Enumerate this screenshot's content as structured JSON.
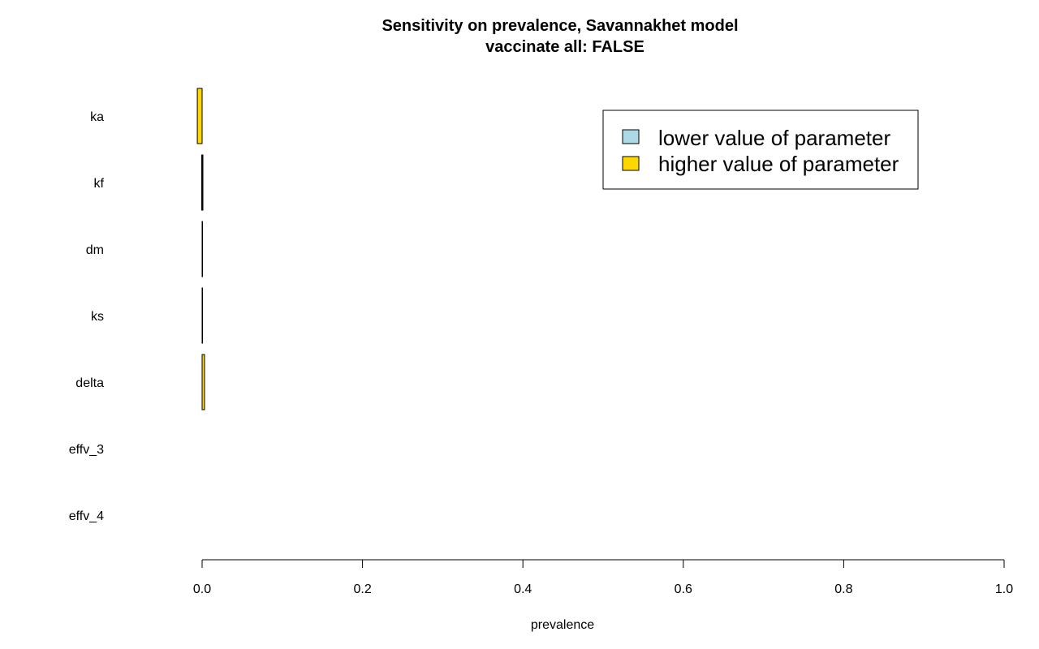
{
  "chart_data": {
    "type": "bar",
    "orientation": "horizontal",
    "title": "Sensitivity on prevalence, Savannakhet model",
    "subtitle": "vaccinate all: FALSE",
    "xlabel": "prevalence",
    "ylabel": "",
    "xlim": [
      0,
      1
    ],
    "x_ticks": [
      "0.0",
      "0.2",
      "0.4",
      "0.6",
      "0.8",
      "1.0"
    ],
    "grid": false,
    "legend_position": "top-right",
    "categories": [
      "ka",
      "kf",
      "dm",
      "ks",
      "delta",
      "effv_3",
      "effv_4"
    ],
    "series": [
      {
        "name": "lower value of parameter",
        "color": "#add8e6",
        "values": [
          [
            0.0,
            0.0
          ],
          [
            -0.0005,
            0.0
          ],
          [
            0.0,
            0.0
          ],
          [
            0.0,
            0.0
          ],
          [
            0.0,
            0.0
          ],
          [
            0.0,
            0.0
          ],
          [
            0.0,
            0.0
          ]
        ]
      },
      {
        "name": "higher value of parameter",
        "color": "#ffd700",
        "values": [
          [
            -0.006,
            0.0
          ],
          [
            0.0,
            0.001
          ],
          [
            0.0,
            0.0005
          ],
          [
            0.0,
            0.0005
          ],
          [
            0.0,
            0.003
          ],
          [
            0.0,
            0.0
          ],
          [
            0.0,
            0.0
          ]
        ]
      }
    ]
  }
}
